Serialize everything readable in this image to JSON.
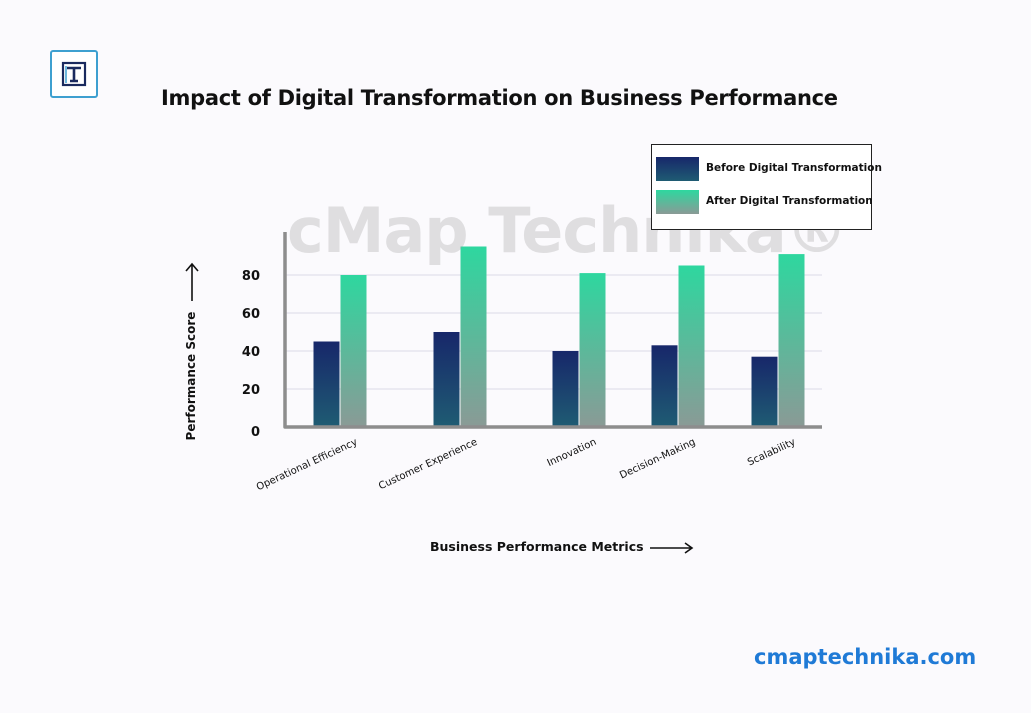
{
  "brand": {
    "logo_letter": "T",
    "logo_icon": "t-logo-icon",
    "watermark": "cMap Technika®",
    "footer_url": "cmaptechnika.com",
    "accent_color": "#1f7ad6",
    "logo_border_color": "#3ea0d0"
  },
  "chart_data": {
    "type": "bar",
    "title": "Impact of Digital Transformation on Business Performance",
    "xlabel": "Business Performance Metrics",
    "ylabel": "Performance Score",
    "categories": [
      "Operational Efficiency",
      "Customer Experience",
      "Innovation",
      "Decision-Making",
      "Scalability"
    ],
    "series": [
      {
        "name": "Before Digital Transformation",
        "values": [
          45,
          50,
          40,
          43,
          37
        ],
        "color_top": "#17276a",
        "color_bottom": "#1f5c73"
      },
      {
        "name": "After Digital Transformation",
        "values": [
          80,
          95,
          81,
          85,
          91
        ],
        "color_top": "#2ed79f",
        "color_bottom": "#8a9a96"
      }
    ],
    "y_ticks": [
      0,
      20,
      40,
      60,
      80
    ],
    "ylim": [
      0,
      100
    ],
    "grid": true,
    "legend_position": "top-right"
  }
}
